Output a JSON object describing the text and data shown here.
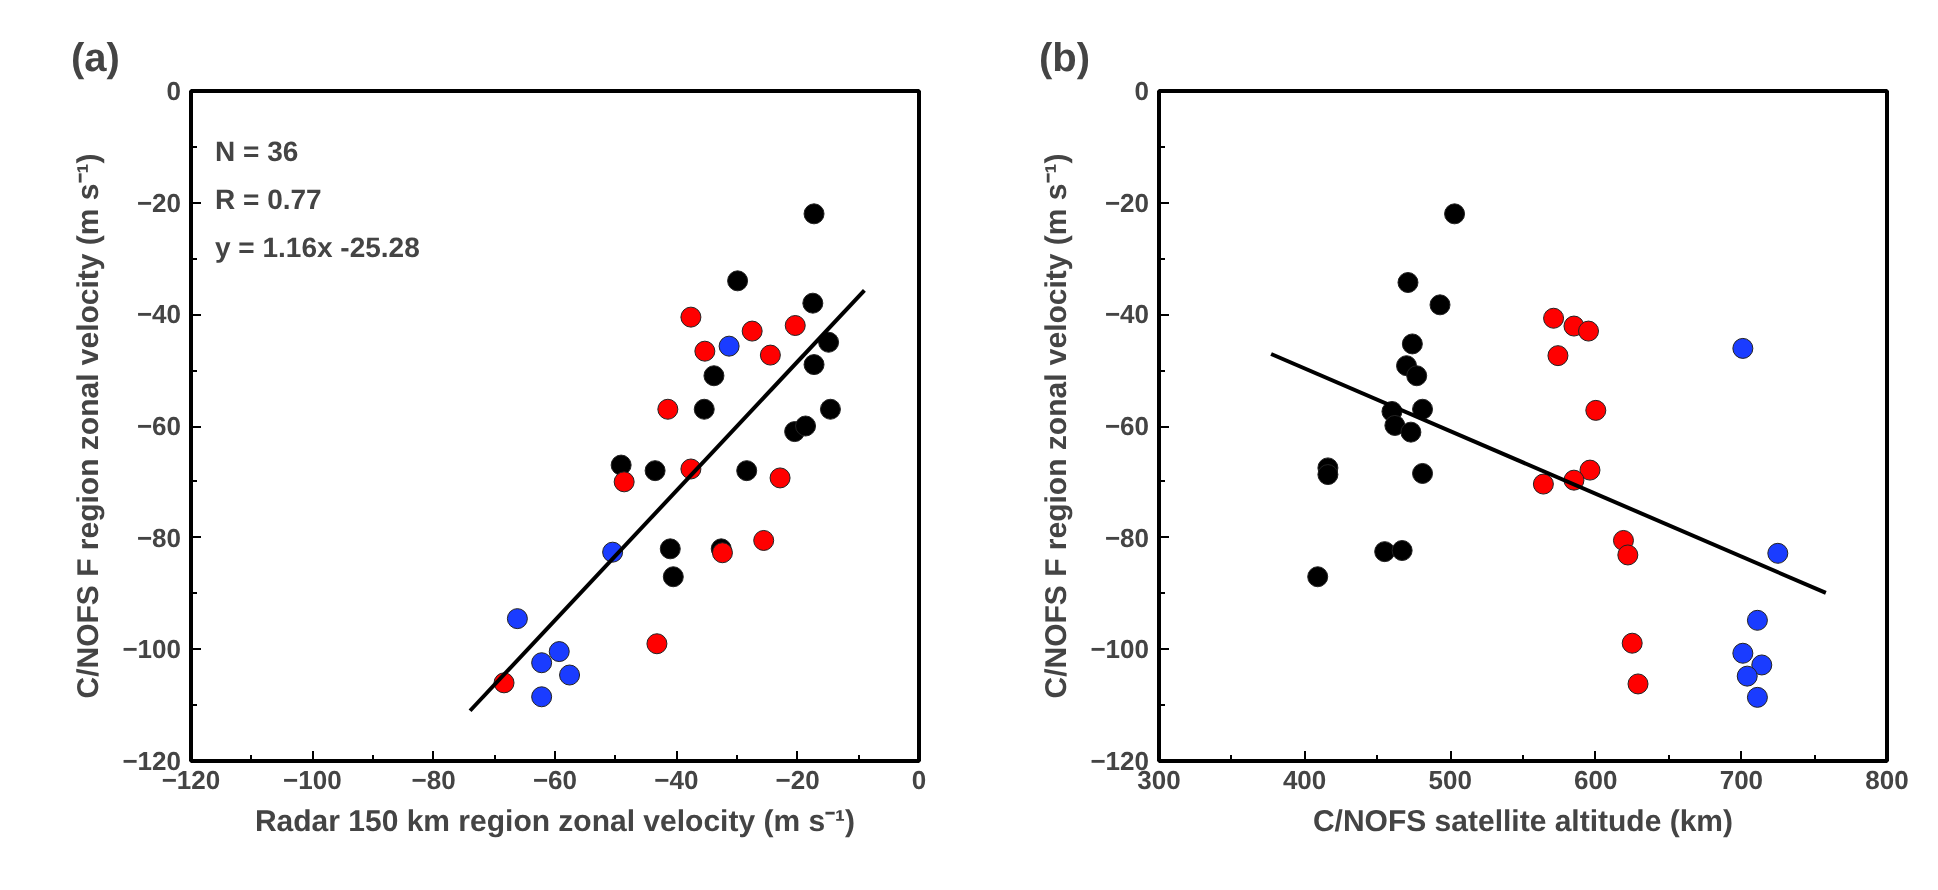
{
  "chart_data": [
    {
      "type": "scatter",
      "title": "(a)",
      "xlabel": "Radar 150 km region zonal velocity (m s⁻¹)",
      "ylabel": "C/NOFS F region zonal velocity (m s⁻¹)",
      "xlim": [
        -120,
        0
      ],
      "ylim": [
        -120,
        0
      ],
      "xticks": [
        -120,
        -100,
        -80,
        -60,
        -40,
        -20,
        0
      ],
      "yticks": [
        -120,
        -100,
        -80,
        -60,
        -40,
        -20,
        0
      ],
      "annotations": [
        "N = 36",
        "R = 0.77",
        "y = 1.16x -25.28"
      ],
      "series": [
        {
          "color": "#000000",
          "marker": "circle",
          "x": [
            -17.3,
            -29.9,
            -17.5,
            -14.9,
            -17.3,
            -33.8,
            -35.4,
            -14.6,
            -20.5,
            -18.7,
            -49.1,
            -43.5,
            -28.4,
            -41.0,
            -32.6,
            -40.5
          ],
          "values": [
            -22,
            -34,
            -38,
            -45,
            -49,
            -51,
            -57,
            -57,
            -61,
            -60,
            -67,
            -68,
            -68,
            -82,
            -82,
            -87
          ]
        },
        {
          "color": "#ff0000",
          "marker": "circle",
          "x": [
            -37.6,
            -27.5,
            -20.4,
            -35.3,
            -24.5,
            -41.4,
            -37.6,
            -48.6,
            -22.9,
            -25.6,
            -32.4,
            -43.2,
            -68.4
          ],
          "values": [
            -40.5,
            -43,
            -42,
            -46.6,
            -47.3,
            -57,
            -67.7,
            -70,
            -69.3,
            -80.5,
            -82.7,
            -99,
            -106
          ]
        },
        {
          "color": "#1a3cff",
          "marker": "circle",
          "x": [
            -31.3,
            -50.5,
            -66.2,
            -59.3,
            -62.2,
            -57.6,
            -62.2
          ],
          "values": [
            -45.7,
            -82.6,
            -94.5,
            -100.4,
            -102.4,
            -104.6,
            -108.5
          ]
        },
        {
          "type": "line",
          "color": "#000000",
          "line_style": "solid",
          "x": [
            -74,
            -9
          ],
          "values": [
            -111,
            -35.7
          ]
        }
      ]
    },
    {
      "type": "scatter",
      "title": "(b)",
      "xlabel": "C/NOFS satellite altitude (km)",
      "ylabel": "C/NOFS F region zonal velocity (m s⁻¹)",
      "xlim": [
        300,
        800
      ],
      "ylim": [
        -120,
        0
      ],
      "xticks": [
        300,
        400,
        500,
        600,
        700,
        800
      ],
      "yticks": [
        -120,
        -100,
        -80,
        -60,
        -40,
        -20,
        0
      ],
      "series": [
        {
          "color": "#000000",
          "marker": "circle",
          "x": [
            503,
            471,
            493,
            474,
            470,
            477,
            460,
            481,
            462,
            473,
            416,
            416,
            481,
            455,
            467,
            409
          ],
          "values": [
            -22,
            -34.3,
            -38.3,
            -45.3,
            -49.2,
            -51,
            -57.4,
            -57,
            -59.9,
            -61.1,
            -67.5,
            -68.7,
            -68.5,
            -82.5,
            -82.3,
            -87
          ]
        },
        {
          "color": "#ff0000",
          "marker": "circle",
          "x": [
            571,
            585,
            595,
            574,
            600,
            596,
            585,
            564,
            619,
            622,
            625,
            629
          ],
          "values": [
            -40.7,
            -42.1,
            -43,
            -47.4,
            -57.2,
            -67.9,
            -69.7,
            -70.4,
            -80.5,
            -83.1,
            -98.9,
            -106.2
          ]
        },
        {
          "color": "#1a3cff",
          "marker": "circle",
          "x": [
            701,
            725,
            711,
            701,
            714,
            704,
            711
          ],
          "values": [
            -46.1,
            -82.8,
            -94.8,
            -100.7,
            -102.8,
            -104.8,
            -108.6
          ]
        },
        {
          "type": "line",
          "color": "#000000",
          "line_style": "solid",
          "x": [
            377,
            758
          ],
          "values": [
            -47.1,
            -89.9
          ]
        }
      ]
    }
  ]
}
